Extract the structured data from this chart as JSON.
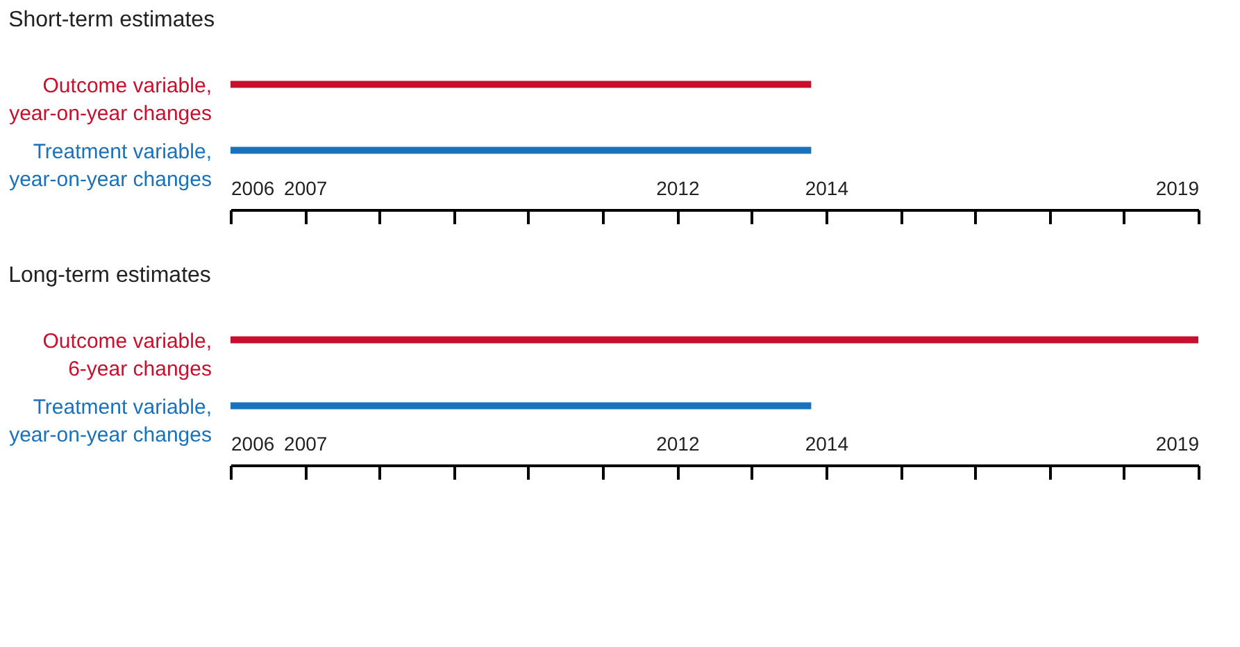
{
  "chart_data": [
    {
      "type": "bar",
      "title": "Short-term estimates",
      "orientation": "horizontal",
      "categories": [
        "Outcome variable,\nyear-on-year changes",
        "Treatment variable,\nyear-on-year changes"
      ],
      "base": [
        2006,
        2006
      ],
      "values": [
        7.8,
        7.8
      ],
      "colors": [
        "#c8102e",
        "#1a72bb"
      ],
      "xlim": [
        2006,
        2019
      ],
      "xticks": [
        2006,
        2007,
        {
          "value": 2008,
          "label": null
        },
        {
          "value": 2009,
          "label": null
        },
        {
          "value": 2010,
          "label": null
        },
        {
          "value": 2011,
          "label": null
        },
        2012,
        {
          "value": 2013,
          "label": null
        },
        2014,
        {
          "value": 2015,
          "label": null
        },
        {
          "value": 2016,
          "label": null
        },
        {
          "value": 2017,
          "label": null
        },
        {
          "value": 2018,
          "label": null
        },
        2019
      ],
      "grid": false
    },
    {
      "type": "bar",
      "title": "Long-term estimates",
      "orientation": "horizontal",
      "categories": [
        "Outcome variable,\n6-year changes",
        "Treatment variable,\nyear-on-year changes"
      ],
      "base": [
        2006,
        2006
      ],
      "values": [
        13,
        7.8
      ],
      "colors": [
        "#c8102e",
        "#1a72bb"
      ],
      "xlim": [
        2006,
        2019
      ],
      "xticks": [
        2006,
        2007,
        {
          "value": 2008,
          "label": null
        },
        {
          "value": 2009,
          "label": null
        },
        {
          "value": 2010,
          "label": null
        },
        {
          "value": 2011,
          "label": null
        },
        2012,
        {
          "value": 2013,
          "label": null
        },
        2014,
        {
          "value": 2015,
          "label": null
        },
        {
          "value": 2016,
          "label": null
        },
        {
          "value": 2017,
          "label": null
        },
        {
          "value": 2018,
          "label": null
        },
        2019
      ],
      "grid": false
    }
  ]
}
